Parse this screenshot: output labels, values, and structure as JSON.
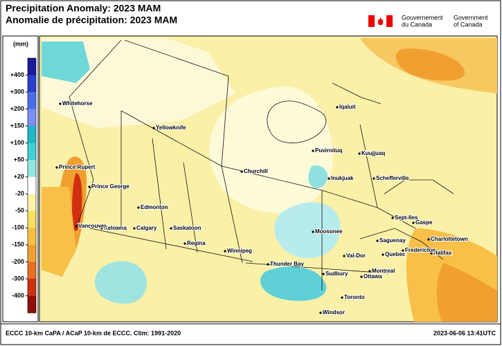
{
  "header": {
    "title_en": "Precipitation Anomaly: 2023 MAM",
    "title_fr": "Anomalie de précipitation: 2023 MAM",
    "gov_fr": [
      "Gouvernement",
      "du Canada"
    ],
    "gov_en": [
      "Government",
      "of Canada"
    ]
  },
  "legend": {
    "unit": "(mm)",
    "labels": [
      "+400",
      "+300",
      "+200",
      "+150",
      "+100",
      "+50",
      "+20",
      "-20",
      "-50",
      "-100",
      "-150",
      "-200",
      "-300",
      "-400"
    ],
    "colors": [
      "#1a1a9c",
      "#2a3fd0",
      "#4a6ee8",
      "#7a8ff0",
      "#20b8c8",
      "#40d0d0",
      "#90e8e0",
      "#ffffff",
      "#fbf3a8",
      "#f8e060",
      "#f8c040",
      "#f0a030",
      "#e87020",
      "#d03010",
      "#901008"
    ]
  },
  "map": {
    "cities": [
      "Whitehorse",
      "Yellowknife",
      "Iqaluit",
      "Puvirnituq",
      "Kuujjuaq",
      "Prince Rupert",
      "Churchill",
      "Inukjuak",
      "Schefferville",
      "Prince George",
      "Edmonton",
      "Calgary",
      "Saskatoon",
      "Kelowna",
      "Vancouver",
      "Regina",
      "Winnipeg",
      "Moosonee",
      "Sept-Iles",
      "Gaspe",
      "Charlottetown",
      "Saguenay",
      "Halifax",
      "Quebec",
      "Fredericton",
      "Val-Dor",
      "Thunder Bay",
      "Montreal",
      "Sudbury",
      "Ottawa",
      "Toronto",
      "Windsor"
    ]
  },
  "footer": {
    "left": "ECCC 10-km CaPA / ACaP 10-km de ECCC. Clim: 1991-2020",
    "right": "2023-06-06 13:41UTC"
  }
}
